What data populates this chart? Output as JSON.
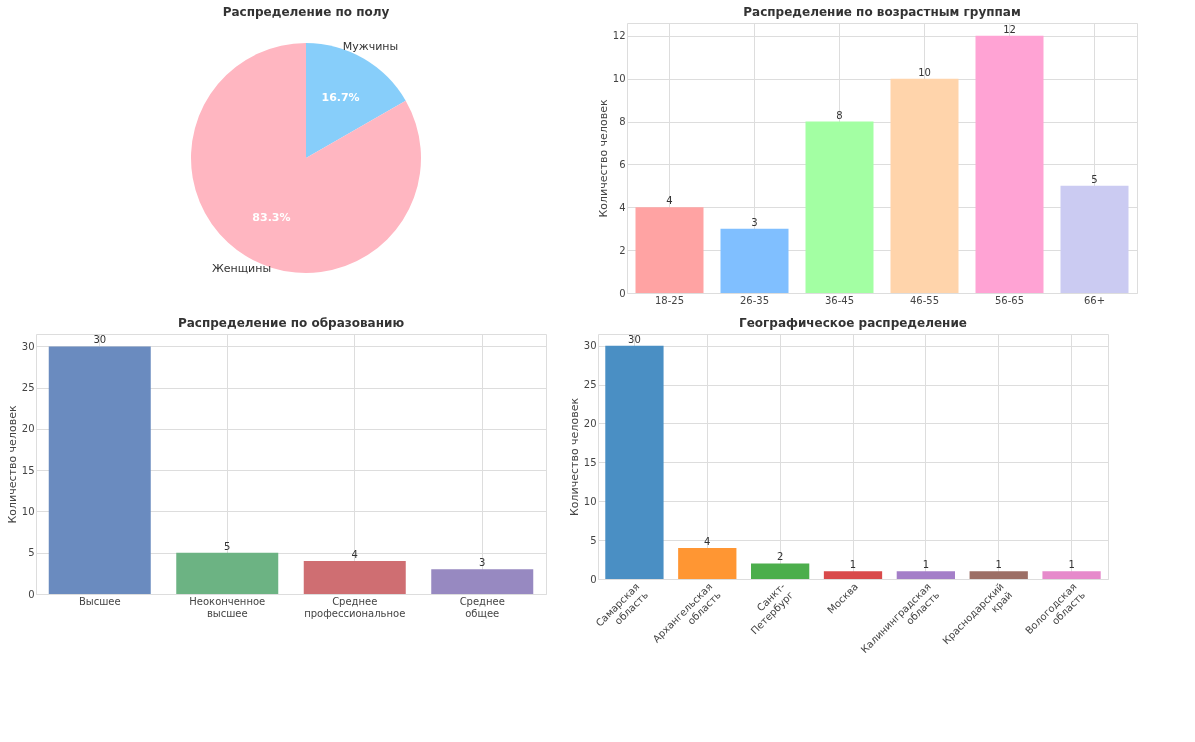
{
  "chart_data": [
    {
      "type": "pie",
      "title": "Распределение по полу",
      "categories": [
        "Мужчины",
        "Женщины"
      ],
      "values": [
        16.7,
        83.3
      ],
      "colors": [
        "#87cefa",
        "#ffb6c1"
      ],
      "value_labels": [
        "16.7%",
        "83.3%"
      ]
    },
    {
      "type": "bar",
      "title": "Распределение по возрастным группам",
      "ylabel": "Количество человек",
      "categories": [
        "18-25",
        "26-35",
        "36-45",
        "46-55",
        "56-65",
        "66+"
      ],
      "values": [
        4,
        3,
        8,
        10,
        12,
        5
      ],
      "colors": [
        "#ffa3a3",
        "#80bfff",
        "#a3ffa3",
        "#ffd4ab",
        "#ffa3d4",
        "#cbcbf2"
      ],
      "ylim": [
        0,
        12.6
      ],
      "yticks": [
        0,
        2,
        4,
        6,
        8,
        10,
        12
      ],
      "grid": true,
      "data_labels": true
    },
    {
      "type": "bar",
      "title": "Распределение по образованию",
      "ylabel": "Количество человек",
      "categories": [
        "Высшее",
        "Неоконченное\nвысшее",
        "Среднее\nпрофессиональное",
        "Среднее\nобщее"
      ],
      "values": [
        30,
        5,
        4,
        3
      ],
      "colors": [
        "#6a8bbf",
        "#6cb383",
        "#cf6e72",
        "#9789c1"
      ],
      "ylim": [
        0,
        31.5
      ],
      "yticks": [
        0,
        5,
        10,
        15,
        20,
        25,
        30
      ],
      "grid": true,
      "data_labels": true
    },
    {
      "type": "bar",
      "title": "Географическое распределение",
      "ylabel": "Количество человек",
      "categories": [
        "Самарская\nобласть",
        "Архангельская\nобласть",
        "Санкт-\nПетербург",
        "Москва",
        "Калининградская\nобласть",
        "Краснодарский\nкрай",
        "Вологодская\nобласть"
      ],
      "values": [
        30,
        4,
        2,
        1,
        1,
        1,
        1
      ],
      "colors": [
        "#4a8fc4",
        "#ff9633",
        "#4cae4c",
        "#d94a4b",
        "#a47fc8",
        "#9c6f66",
        "#e68acb"
      ],
      "ylim": [
        0,
        31.5
      ],
      "yticks": [
        0,
        5,
        10,
        15,
        20,
        25,
        30
      ],
      "grid": true,
      "data_labels": true
    }
  ]
}
